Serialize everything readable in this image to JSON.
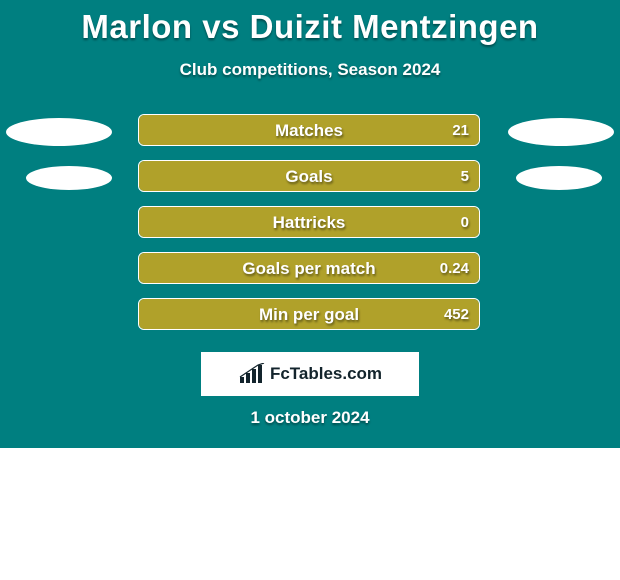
{
  "background_color": "#007f80",
  "text_color": "#ffffff",
  "title": "Marlon vs Duizit Mentzingen",
  "subtitle": "Club competitions, Season 2024",
  "rows": [
    {
      "label": "Matches",
      "value": "21",
      "fill_pct": 100,
      "fill_color": "#b0a12a",
      "left_ellipse": "big",
      "right_ellipse": "big"
    },
    {
      "label": "Goals",
      "value": "5",
      "fill_pct": 100,
      "fill_color": "#b0a12a",
      "left_ellipse": "small",
      "right_ellipse": "small"
    },
    {
      "label": "Hattricks",
      "value": "0",
      "fill_pct": 100,
      "fill_color": "#b0a12a",
      "left_ellipse": "none",
      "right_ellipse": "none"
    },
    {
      "label": "Goals per match",
      "value": "0.24",
      "fill_pct": 100,
      "fill_color": "#b0a12a",
      "left_ellipse": "none",
      "right_ellipse": "none"
    },
    {
      "label": "Min per goal",
      "value": "452",
      "fill_pct": 100,
      "fill_color": "#b0a12a",
      "left_ellipse": "none",
      "right_ellipse": "none"
    }
  ],
  "brand": "FcTables.com",
  "date": "1 october 2024",
  "bottom_white_height": 132
}
